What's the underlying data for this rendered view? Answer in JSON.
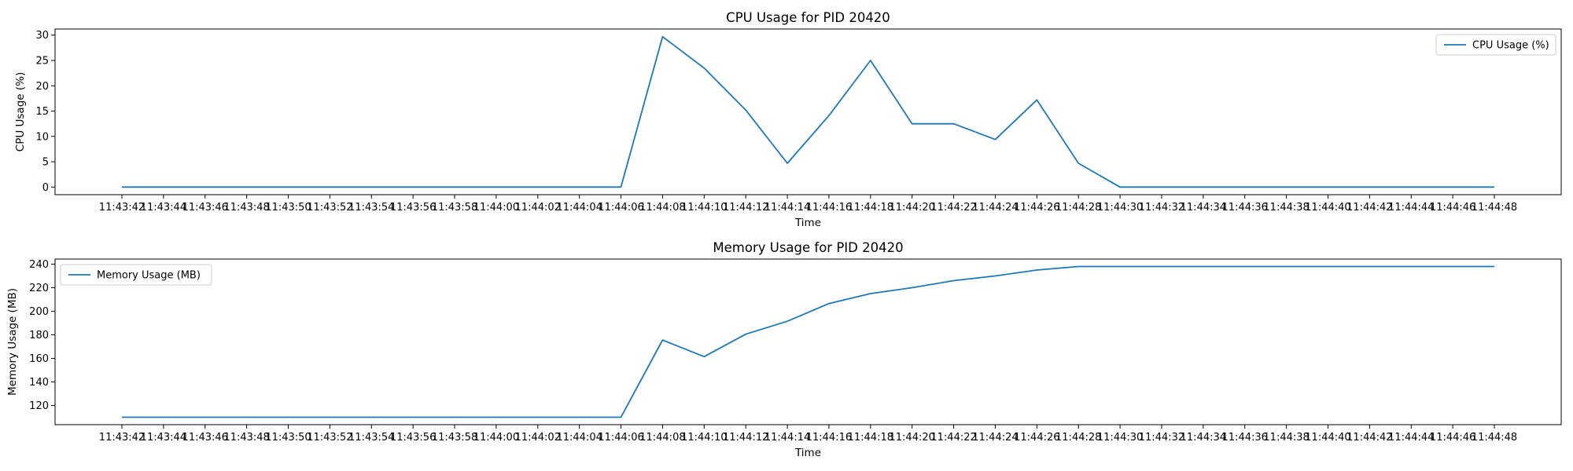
{
  "colors": {
    "series": "#1f77b4",
    "axes": "#000000",
    "legend_border": "#cccccc"
  },
  "chart_data": [
    {
      "type": "line",
      "title": "CPU Usage for PID 20420",
      "xlabel": "Time",
      "ylabel": "CPU Usage (%)",
      "ylim": [
        -1.5,
        31.2
      ],
      "yticks": [
        0,
        5,
        10,
        15,
        20,
        25,
        30
      ],
      "grid": false,
      "legend": "top-right",
      "x": [
        "11:43:42",
        "11:43:44",
        "11:43:46",
        "11:43:48",
        "11:43:50",
        "11:43:52",
        "11:43:54",
        "11:43:56",
        "11:43:58",
        "11:44:00",
        "11:44:02",
        "11:44:04",
        "11:44:06",
        "11:44:08",
        "11:44:10",
        "11:44:12",
        "11:44:14",
        "11:44:16",
        "11:44:18",
        "11:44:20",
        "11:44:22",
        "11:44:24",
        "11:44:26",
        "11:44:28",
        "11:44:30",
        "11:44:32",
        "11:44:34",
        "11:44:36",
        "11:44:38",
        "11:44:40",
        "11:44:42",
        "11:44:44",
        "11:44:46",
        "11:44:48"
      ],
      "series": [
        {
          "name": "CPU Usage (%)",
          "values": [
            0,
            0,
            0,
            0,
            0,
            0,
            0,
            0,
            0,
            0,
            0,
            0,
            0,
            29.7,
            23.5,
            15.2,
            4.7,
            14.1,
            25.0,
            12.5,
            12.5,
            9.4,
            17.2,
            4.7,
            0,
            0,
            0,
            0,
            0,
            0,
            0,
            0,
            0,
            0
          ]
        }
      ]
    },
    {
      "type": "line",
      "title": "Memory Usage for PID 20420",
      "xlabel": "Time",
      "ylabel": "Memory Usage (MB)",
      "ylim": [
        103.7,
        244.3
      ],
      "yticks": [
        120,
        140,
        160,
        180,
        200,
        220,
        240
      ],
      "grid": false,
      "legend": "top-left",
      "x": [
        "11:43:42",
        "11:43:44",
        "11:43:46",
        "11:43:48",
        "11:43:50",
        "11:43:52",
        "11:43:54",
        "11:43:56",
        "11:43:58",
        "11:44:00",
        "11:44:02",
        "11:44:04",
        "11:44:06",
        "11:44:08",
        "11:44:10",
        "11:44:12",
        "11:44:14",
        "11:44:16",
        "11:44:18",
        "11:44:20",
        "11:44:22",
        "11:44:24",
        "11:44:26",
        "11:44:28",
        "11:44:30",
        "11:44:32",
        "11:44:34",
        "11:44:36",
        "11:44:38",
        "11:44:40",
        "11:44:42",
        "11:44:44",
        "11:44:46",
        "11:44:48"
      ],
      "series": [
        {
          "name": "Memory Usage (MB)",
          "values": [
            110,
            110,
            110,
            110,
            110,
            110,
            110,
            110,
            110,
            110,
            110,
            110,
            110,
            175.5,
            161.5,
            180.5,
            191.5,
            206.5,
            215,
            220,
            226,
            230,
            235,
            238,
            238,
            238,
            238,
            238,
            238,
            238,
            238,
            238,
            238,
            238
          ]
        }
      ]
    }
  ]
}
